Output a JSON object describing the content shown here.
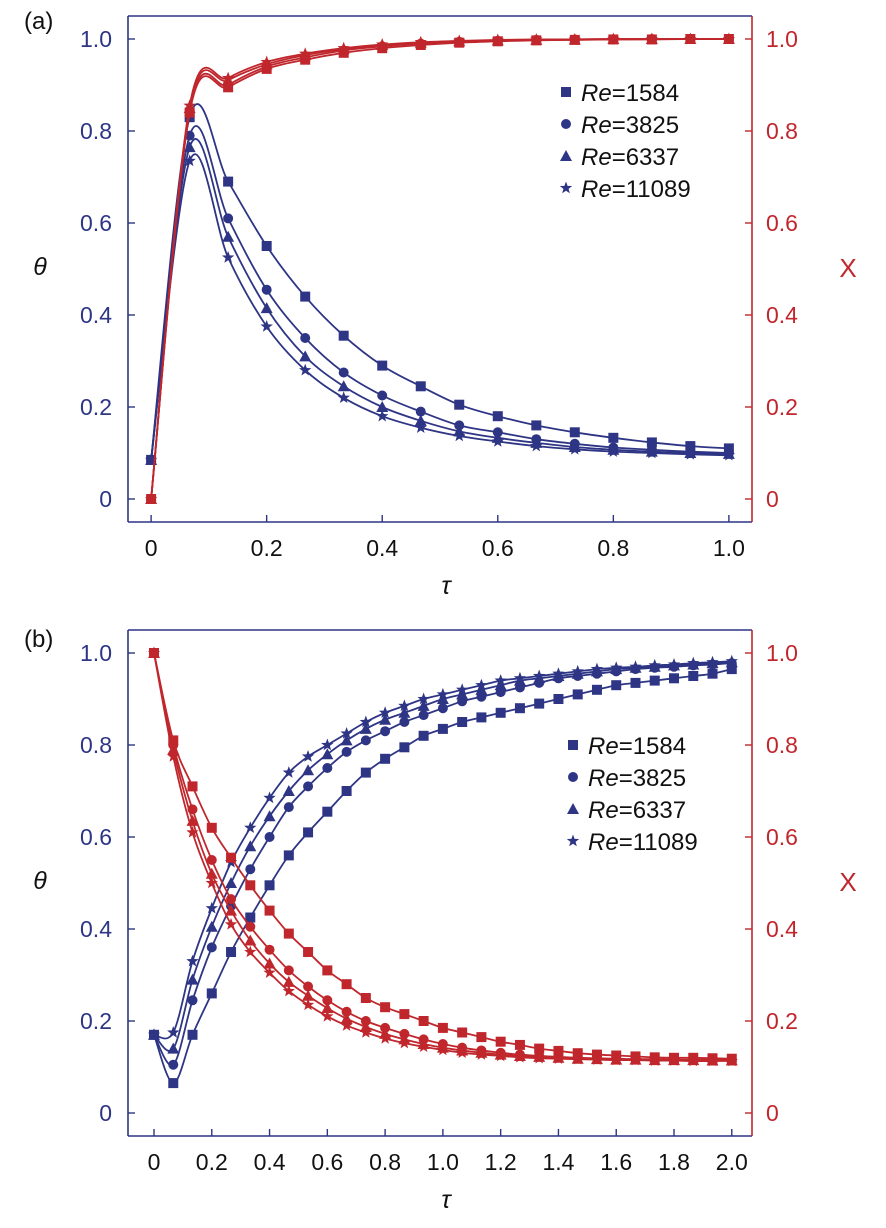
{
  "colors": {
    "theta": "#2e3585",
    "x": "#c0272d",
    "axis": "#2e3585"
  },
  "chart_data": [
    {
      "panel": "(a)",
      "type": "line",
      "xlabel": "τ",
      "ylabel_left": "θ",
      "ylabel_right": "X",
      "xlim": [
        -0.04,
        1.04
      ],
      "ylim_left": [
        -0.05,
        1.05
      ],
      "ylim_right": [
        -0.05,
        1.05
      ],
      "xticks": [
        "0",
        "0.2",
        "0.4",
        "0.6",
        "0.8",
        "1.0"
      ],
      "xtick_values": [
        0,
        0.2,
        0.4,
        0.6,
        0.8,
        1.0
      ],
      "yticks": [
        "0",
        "0.2",
        "0.4",
        "0.6",
        "0.8",
        "1.0"
      ],
      "ytick_values": [
        0,
        0.2,
        0.4,
        0.6,
        0.8,
        1.0
      ],
      "legend": {
        "position": "top-right",
        "entries": [
          {
            "prefix": "Re",
            "value": "=1584",
            "marker": "square"
          },
          {
            "prefix": "Re",
            "value": "=3825",
            "marker": "circle"
          },
          {
            "prefix": "Re",
            "value": "=6337",
            "marker": "triangle"
          },
          {
            "prefix": "Re",
            "value": "=11089",
            "marker": "star"
          }
        ]
      },
      "series": [
        {
          "name": "θ Re=1584",
          "axis": "left",
          "marker": "square",
          "x": [
            0,
            0.0667,
            0.1333,
            0.2,
            0.2667,
            0.3333,
            0.4,
            0.4667,
            0.5333,
            0.6,
            0.6667,
            0.7333,
            0.8,
            0.8667,
            0.9333,
            1.0
          ],
          "values": [
            0.085,
            0.83,
            0.69,
            0.55,
            0.44,
            0.355,
            0.29,
            0.245,
            0.205,
            0.18,
            0.16,
            0.145,
            0.133,
            0.123,
            0.115,
            0.11
          ]
        },
        {
          "name": "θ Re=3825",
          "axis": "left",
          "marker": "circle",
          "x": [
            0,
            0.0667,
            0.1333,
            0.2,
            0.2667,
            0.3333,
            0.4,
            0.4667,
            0.5333,
            0.6,
            0.6667,
            0.7333,
            0.8,
            0.8667,
            0.9333,
            1.0
          ],
          "values": [
            0.085,
            0.79,
            0.61,
            0.455,
            0.35,
            0.275,
            0.225,
            0.19,
            0.16,
            0.145,
            0.13,
            0.12,
            0.112,
            0.107,
            0.103,
            0.1
          ]
        },
        {
          "name": "θ Re=6337",
          "axis": "left",
          "marker": "triangle",
          "x": [
            0,
            0.0667,
            0.1333,
            0.2,
            0.2667,
            0.3333,
            0.4,
            0.4667,
            0.5333,
            0.6,
            0.6667,
            0.7333,
            0.8,
            0.8667,
            0.9333,
            1.0
          ],
          "values": [
            0.085,
            0.765,
            0.57,
            0.415,
            0.31,
            0.245,
            0.2,
            0.17,
            0.147,
            0.133,
            0.122,
            0.113,
            0.107,
            0.103,
            0.1,
            0.098
          ]
        },
        {
          "name": "θ Re=11089",
          "axis": "left",
          "marker": "star",
          "x": [
            0,
            0.0667,
            0.1333,
            0.2,
            0.2667,
            0.3333,
            0.4,
            0.4667,
            0.5333,
            0.6,
            0.6667,
            0.7333,
            0.8,
            0.8667,
            0.9333,
            1.0
          ],
          "values": [
            0.085,
            0.735,
            0.525,
            0.375,
            0.28,
            0.22,
            0.18,
            0.155,
            0.137,
            0.125,
            0.115,
            0.108,
            0.103,
            0.1,
            0.097,
            0.095
          ]
        },
        {
          "name": "X Re=1584",
          "axis": "right",
          "marker": "square",
          "x": [
            0,
            0.0667,
            0.1333,
            0.2,
            0.2667,
            0.3333,
            0.4,
            0.4667,
            0.5333,
            0.6,
            0.6667,
            0.7333,
            0.8,
            0.8667,
            0.9333,
            1.0
          ],
          "values": [
            0,
            0.84,
            0.895,
            0.935,
            0.955,
            0.97,
            0.98,
            0.987,
            0.992,
            0.995,
            0.997,
            0.998,
            0.999,
            0.999,
            1.0,
            1.0
          ]
        },
        {
          "name": "X Re=3825",
          "axis": "right",
          "marker": "circle",
          "x": [
            0,
            0.0667,
            0.1333,
            0.2,
            0.2667,
            0.3333,
            0.4,
            0.4667,
            0.5333,
            0.6,
            0.6667,
            0.7333,
            0.8,
            0.8667,
            0.9333,
            1.0
          ],
          "values": [
            0,
            0.845,
            0.9,
            0.94,
            0.96,
            0.975,
            0.984,
            0.99,
            0.994,
            0.996,
            0.998,
            0.999,
            0.999,
            1.0,
            1.0,
            1.0
          ]
        },
        {
          "name": "X Re=6337",
          "axis": "right",
          "marker": "triangle",
          "x": [
            0,
            0.0667,
            0.1333,
            0.2,
            0.2667,
            0.3333,
            0.4,
            0.4667,
            0.5333,
            0.6,
            0.6667,
            0.7333,
            0.8,
            0.8667,
            0.9333,
            1.0
          ],
          "values": [
            0,
            0.85,
            0.91,
            0.945,
            0.965,
            0.978,
            0.987,
            0.992,
            0.995,
            0.997,
            0.998,
            0.999,
            1.0,
            1.0,
            1.0,
            1.0
          ]
        },
        {
          "name": "X Re=11089",
          "axis": "right",
          "marker": "star",
          "x": [
            0,
            0.0667,
            0.1333,
            0.2,
            0.2667,
            0.3333,
            0.4,
            0.4667,
            0.5333,
            0.6,
            0.6667,
            0.7333,
            0.8,
            0.8667,
            0.9333,
            1.0
          ],
          "values": [
            0,
            0.855,
            0.915,
            0.95,
            0.968,
            0.98,
            0.988,
            0.993,
            0.996,
            0.998,
            0.999,
            0.999,
            1.0,
            1.0,
            1.0,
            1.0
          ]
        }
      ]
    },
    {
      "panel": "(b)",
      "type": "line",
      "xlabel": "τ",
      "ylabel_left": "θ",
      "ylabel_right": "X",
      "xlim": [
        -0.09,
        2.07
      ],
      "ylim_left": [
        -0.05,
        1.05
      ],
      "ylim_right": [
        -0.05,
        1.05
      ],
      "xticks": [
        "0",
        "0.2",
        "0.4",
        "0.6",
        "0.8",
        "1.0",
        "1.2",
        "1.4",
        "1.6",
        "1.8",
        "2.0"
      ],
      "xtick_values": [
        0,
        0.2,
        0.4,
        0.6,
        0.8,
        1.0,
        1.2,
        1.4,
        1.6,
        1.8,
        2.0
      ],
      "yticks": [
        "0",
        "0.2",
        "0.4",
        "0.6",
        "0.8",
        "1.0"
      ],
      "ytick_values": [
        0,
        0.2,
        0.4,
        0.6,
        0.8,
        1.0
      ],
      "legend": {
        "position": "right",
        "entries": [
          {
            "prefix": "Re",
            "value": "=1584",
            "marker": "square"
          },
          {
            "prefix": "Re",
            "value": "=3825",
            "marker": "circle"
          },
          {
            "prefix": "Re",
            "value": "=6337",
            "marker": "triangle"
          },
          {
            "prefix": "Re",
            "value": "=11089",
            "marker": "star"
          }
        ]
      },
      "series": [
        {
          "name": "θ Re=1584",
          "axis": "left",
          "marker": "square",
          "x": [
            0,
            0.0667,
            0.1333,
            0.2,
            0.2667,
            0.3333,
            0.4,
            0.4667,
            0.5333,
            0.6,
            0.6667,
            0.7333,
            0.8,
            0.8667,
            0.9333,
            1.0,
            1.0667,
            1.1333,
            1.2,
            1.2667,
            1.3333,
            1.4,
            1.4667,
            1.5333,
            1.6,
            1.6667,
            1.7333,
            1.8,
            1.8667,
            1.9333,
            2.0
          ],
          "values": [
            0.17,
            0.065,
            0.17,
            0.26,
            0.35,
            0.425,
            0.495,
            0.56,
            0.61,
            0.655,
            0.7,
            0.74,
            0.77,
            0.795,
            0.82,
            0.835,
            0.85,
            0.86,
            0.87,
            0.88,
            0.89,
            0.9,
            0.91,
            0.92,
            0.93,
            0.935,
            0.94,
            0.945,
            0.95,
            0.955,
            0.965
          ]
        },
        {
          "name": "θ Re=3825",
          "axis": "left",
          "marker": "circle",
          "x": [
            0,
            0.0667,
            0.1333,
            0.2,
            0.2667,
            0.3333,
            0.4,
            0.4667,
            0.5333,
            0.6,
            0.6667,
            0.7333,
            0.8,
            0.8667,
            0.9333,
            1.0,
            1.0667,
            1.1333,
            1.2,
            1.2667,
            1.3333,
            1.4,
            1.4667,
            1.5333,
            1.6,
            1.6667,
            1.7333,
            1.8,
            1.8667,
            1.9333,
            2.0
          ],
          "values": [
            0.17,
            0.105,
            0.245,
            0.36,
            0.45,
            0.53,
            0.6,
            0.665,
            0.71,
            0.75,
            0.785,
            0.81,
            0.83,
            0.85,
            0.865,
            0.88,
            0.895,
            0.905,
            0.915,
            0.925,
            0.935,
            0.945,
            0.95,
            0.955,
            0.96,
            0.965,
            0.968,
            0.97,
            0.973,
            0.975,
            0.978
          ]
        },
        {
          "name": "θ Re=6337",
          "axis": "left",
          "marker": "triangle",
          "x": [
            0,
            0.0667,
            0.1333,
            0.2,
            0.2667,
            0.3333,
            0.4,
            0.4667,
            0.5333,
            0.6,
            0.6667,
            0.7333,
            0.8,
            0.8667,
            0.9333,
            1.0,
            1.0667,
            1.1333,
            1.2,
            1.2667,
            1.3333,
            1.4,
            1.4667,
            1.5333,
            1.6,
            1.6667,
            1.7333,
            1.8,
            1.8667,
            1.9333,
            2.0
          ],
          "values": [
            0.17,
            0.14,
            0.29,
            0.405,
            0.5,
            0.58,
            0.645,
            0.7,
            0.745,
            0.78,
            0.81,
            0.835,
            0.855,
            0.87,
            0.885,
            0.9,
            0.91,
            0.92,
            0.93,
            0.94,
            0.945,
            0.95,
            0.955,
            0.96,
            0.965,
            0.968,
            0.97,
            0.973,
            0.975,
            0.978,
            0.98
          ]
        },
        {
          "name": "θ Re=11089",
          "axis": "left",
          "marker": "star",
          "x": [
            0,
            0.0667,
            0.1333,
            0.2,
            0.2667,
            0.3333,
            0.4,
            0.4667,
            0.5333,
            0.6,
            0.6667,
            0.7333,
            0.8,
            0.8667,
            0.9333,
            1.0,
            1.0667,
            1.1333,
            1.2,
            1.2667,
            1.3333,
            1.4,
            1.4667,
            1.5333,
            1.6,
            1.6667,
            1.7333,
            1.8,
            1.8667,
            1.9333,
            2.0
          ],
          "values": [
            0.17,
            0.175,
            0.33,
            0.445,
            0.545,
            0.62,
            0.685,
            0.74,
            0.775,
            0.8,
            0.825,
            0.85,
            0.87,
            0.885,
            0.9,
            0.91,
            0.92,
            0.93,
            0.94,
            0.945,
            0.95,
            0.955,
            0.96,
            0.965,
            0.968,
            0.97,
            0.973,
            0.975,
            0.978,
            0.98,
            0.982
          ]
        },
        {
          "name": "X Re=1584",
          "axis": "right",
          "marker": "square",
          "x": [
            0,
            0.0667,
            0.1333,
            0.2,
            0.2667,
            0.3333,
            0.4,
            0.4667,
            0.5333,
            0.6,
            0.6667,
            0.7333,
            0.8,
            0.8667,
            0.9333,
            1.0,
            1.0667,
            1.1333,
            1.2,
            1.2667,
            1.3333,
            1.4,
            1.4667,
            1.5333,
            1.6,
            1.6667,
            1.7333,
            1.8,
            1.8667,
            1.9333,
            2.0
          ],
          "values": [
            1.0,
            0.81,
            0.71,
            0.62,
            0.555,
            0.495,
            0.44,
            0.39,
            0.35,
            0.31,
            0.28,
            0.25,
            0.23,
            0.215,
            0.2,
            0.185,
            0.175,
            0.165,
            0.155,
            0.148,
            0.14,
            0.135,
            0.13,
            0.127,
            0.125,
            0.123,
            0.121,
            0.12,
            0.12,
            0.119,
            0.118
          ]
        },
        {
          "name": "X Re=3825",
          "axis": "right",
          "marker": "circle",
          "x": [
            0,
            0.0667,
            0.1333,
            0.2,
            0.2667,
            0.3333,
            0.4,
            0.4667,
            0.5333,
            0.6,
            0.6667,
            0.7333,
            0.8,
            0.8667,
            0.9333,
            1.0,
            1.0667,
            1.1333,
            1.2,
            1.2667,
            1.3333,
            1.4,
            1.4667,
            1.5333,
            1.6,
            1.6667,
            1.7333,
            1.8,
            1.8667,
            1.9333,
            2.0
          ],
          "values": [
            1.0,
            0.8,
            0.66,
            0.55,
            0.465,
            0.405,
            0.355,
            0.31,
            0.275,
            0.245,
            0.22,
            0.2,
            0.185,
            0.172,
            0.16,
            0.15,
            0.142,
            0.136,
            0.131,
            0.127,
            0.124,
            0.122,
            0.12,
            0.119,
            0.118,
            0.117,
            0.117,
            0.116,
            0.116,
            0.116,
            0.115
          ]
        },
        {
          "name": "X Re=6337",
          "axis": "right",
          "marker": "triangle",
          "x": [
            0,
            0.0667,
            0.1333,
            0.2,
            0.2667,
            0.3333,
            0.4,
            0.4667,
            0.5333,
            0.6,
            0.6667,
            0.7333,
            0.8,
            0.8667,
            0.9333,
            1.0,
            1.0667,
            1.1333,
            1.2,
            1.2667,
            1.3333,
            1.4,
            1.4667,
            1.5333,
            1.6,
            1.6667,
            1.7333,
            1.8,
            1.8667,
            1.9333,
            2.0
          ],
          "values": [
            1.0,
            0.79,
            0.635,
            0.52,
            0.44,
            0.375,
            0.325,
            0.285,
            0.255,
            0.228,
            0.205,
            0.187,
            0.172,
            0.16,
            0.15,
            0.142,
            0.136,
            0.131,
            0.127,
            0.124,
            0.122,
            0.12,
            0.118,
            0.117,
            0.116,
            0.116,
            0.115,
            0.115,
            0.115,
            0.114,
            0.114
          ]
        },
        {
          "name": "X Re=11089",
          "axis": "right",
          "marker": "star",
          "x": [
            0,
            0.0667,
            0.1333,
            0.2,
            0.2667,
            0.3333,
            0.4,
            0.4667,
            0.5333,
            0.6,
            0.6667,
            0.7333,
            0.8,
            0.8667,
            0.9333,
            1.0,
            1.0667,
            1.1333,
            1.2,
            1.2667,
            1.3333,
            1.4,
            1.4667,
            1.5333,
            1.6,
            1.6667,
            1.7333,
            1.8,
            1.8667,
            1.9333,
            2.0
          ],
          "values": [
            1.0,
            0.775,
            0.61,
            0.5,
            0.41,
            0.35,
            0.305,
            0.265,
            0.235,
            0.21,
            0.19,
            0.175,
            0.162,
            0.152,
            0.144,
            0.137,
            0.131,
            0.127,
            0.124,
            0.121,
            0.119,
            0.118,
            0.117,
            0.116,
            0.115,
            0.115,
            0.114,
            0.114,
            0.113,
            0.113,
            0.113
          ]
        }
      ]
    }
  ]
}
